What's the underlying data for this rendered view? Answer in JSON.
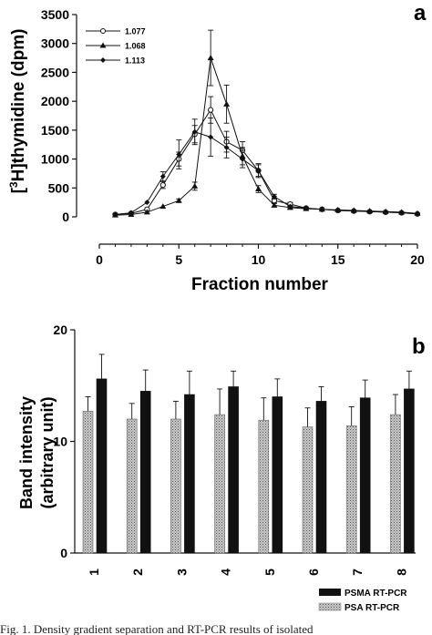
{
  "chart_data": [
    {
      "panel_letter": "a",
      "type": "line",
      "xlabel": "Fraction number",
      "ylabel": "[3H]thymidine (dpm)",
      "ylabel_parts": {
        "open": "[",
        "sup": "3",
        "rest": "H]thymidine (dpm)"
      },
      "xlim": [
        0,
        20
      ],
      "ylim": [
        0,
        3500
      ],
      "xticks": [
        0,
        5,
        10,
        15,
        20
      ],
      "yticks": [
        0,
        500,
        1000,
        1500,
        2000,
        2500,
        3000,
        3500
      ],
      "legend_position": "top-left",
      "grid": false,
      "x": [
        1,
        2,
        3,
        4,
        5,
        6,
        7,
        8,
        9,
        10,
        11,
        12,
        13,
        14,
        15,
        16,
        17,
        18,
        19,
        20
      ],
      "series": [
        {
          "name": "1.077",
          "marker": "open-circle",
          "values": [
            40,
            60,
            130,
            550,
            1000,
            1430,
            1850,
            1300,
            1150,
            800,
            280,
            220,
            150,
            130,
            110,
            100,
            90,
            80,
            70,
            50
          ],
          "errors": [
            0,
            0,
            0,
            60,
            120,
            150,
            230,
            180,
            150,
            120,
            40,
            30,
            20,
            0,
            0,
            0,
            0,
            0,
            0,
            0
          ]
        },
        {
          "name": "1.068",
          "marker": "filled-triangle",
          "values": [
            30,
            40,
            80,
            180,
            280,
            530,
            2750,
            1950,
            1050,
            480,
            200,
            160,
            140,
            130,
            120,
            110,
            100,
            90,
            80,
            60
          ],
          "errors": [
            0,
            0,
            0,
            0,
            30,
            70,
            480,
            330,
            150,
            60,
            30,
            20,
            0,
            0,
            0,
            0,
            0,
            0,
            0,
            0
          ]
        },
        {
          "name": "1.113",
          "marker": "filled-diamond",
          "values": [
            40,
            70,
            250,
            700,
            1080,
            1470,
            1380,
            1200,
            1000,
            800,
            350,
            180,
            150,
            130,
            110,
            100,
            90,
            80,
            70,
            50
          ],
          "errors": [
            0,
            0,
            0,
            80,
            250,
            220,
            330,
            180,
            150,
            100,
            40,
            0,
            0,
            0,
            0,
            0,
            0,
            0,
            0,
            0
          ]
        }
      ]
    },
    {
      "panel_letter": "b",
      "type": "bar",
      "xlabel": "",
      "ylabel_line1": "Band intensity",
      "ylabel_line2": "(arbitrary unit)",
      "ylim": [
        0,
        20
      ],
      "yticks": [
        0,
        10,
        20
      ],
      "categories": [
        "1",
        "2",
        "3",
        "4",
        "5",
        "6",
        "7",
        "8"
      ],
      "legend_position": "bottom-right",
      "grid": false,
      "series": [
        {
          "name": "PSA RT-PCR",
          "fill": "stippled-gray",
          "values": [
            12.7,
            12.0,
            12.0,
            12.4,
            11.9,
            11.3,
            11.4,
            12.4
          ],
          "errors": [
            1.3,
            1.4,
            1.6,
            2.3,
            2.0,
            1.7,
            1.7,
            1.8
          ]
        },
        {
          "name": "PSMA RT-PCR",
          "fill": "solid-black",
          "values": [
            15.6,
            14.5,
            14.2,
            14.9,
            14.0,
            13.6,
            13.9,
            14.7
          ],
          "errors": [
            2.2,
            1.9,
            2.1,
            1.4,
            1.6,
            1.3,
            1.6,
            1.6
          ]
        }
      ]
    }
  ],
  "caption": "Fig. 1. Density gradient separation and RT-PCR results of isolated"
}
